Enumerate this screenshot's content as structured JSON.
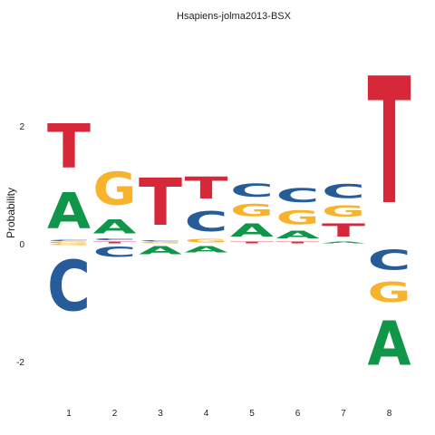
{
  "chart_data": {
    "type": "sequence-logo",
    "title": "Hsapiens-jolma2013-BSX",
    "ylabel": "Probability",
    "xlabel": "",
    "ylim": [
      -2.3,
      3.45
    ],
    "yticks": [
      -2,
      0,
      2
    ],
    "positions": [
      "1",
      "2",
      "3",
      "4",
      "5",
      "6",
      "7",
      "8"
    ],
    "colors": {
      "A": "#109648",
      "C": "#255C99",
      "G": "#F7B32B",
      "T": "#D62839"
    },
    "columns": [
      {
        "position": "1",
        "above": [
          {
            "letter": "G",
            "height": 0.04
          },
          {
            "letter": "C",
            "height": 0.03
          },
          {
            "letter": "A",
            "height": 0.98
          },
          {
            "letter": "T",
            "height": 1.2
          }
        ],
        "below": [
          {
            "letter": "G",
            "height": 0.03
          },
          {
            "letter": "C",
            "height": 1.38
          }
        ]
      },
      {
        "position": "2",
        "above": [
          {
            "letter": "T",
            "height": 0.05
          },
          {
            "letter": "C",
            "height": 0.05
          },
          {
            "letter": "A",
            "height": 0.38
          },
          {
            "letter": "G",
            "height": 0.9
          }
        ],
        "below": [
          {
            "letter": "C",
            "height": 0.28
          }
        ]
      },
      {
        "position": "3",
        "above": [
          {
            "letter": "G",
            "height": 0.03
          },
          {
            "letter": "C",
            "height": 0.03
          },
          {
            "letter": "T",
            "height": 1.28
          }
        ],
        "below": [
          {
            "letter": "A",
            "height": 0.22
          }
        ]
      },
      {
        "position": "4",
        "above": [
          {
            "letter": "G",
            "height": 0.1
          },
          {
            "letter": "C",
            "height": 0.55
          },
          {
            "letter": "T",
            "height": 0.6
          }
        ],
        "below": [
          {
            "letter": "A",
            "height": 0.18
          }
        ]
      },
      {
        "position": "5",
        "above": [
          {
            "letter": "T",
            "height": 0.05
          },
          {
            "letter": "A",
            "height": 0.35
          },
          {
            "letter": "G",
            "height": 0.33
          },
          {
            "letter": "C",
            "height": 0.35
          }
        ],
        "below": []
      },
      {
        "position": "6",
        "above": [
          {
            "letter": "T",
            "height": 0.05
          },
          {
            "letter": "A",
            "height": 0.2
          },
          {
            "letter": "G",
            "height": 0.38
          },
          {
            "letter": "C",
            "height": 0.38
          }
        ],
        "below": []
      },
      {
        "position": "7",
        "above": [
          {
            "letter": "A",
            "height": 0.05
          },
          {
            "letter": "T",
            "height": 0.35
          },
          {
            "letter": "G",
            "height": 0.3
          },
          {
            "letter": "C",
            "height": 0.38
          }
        ],
        "below": []
      },
      {
        "position": "8",
        "above": [
          {
            "letter": "T",
            "height": 3.45
          }
        ],
        "below": [
          {
            "letter": "C",
            "height": 0.55
          },
          {
            "letter": "G",
            "height": 0.55
          },
          {
            "letter": "A",
            "height": 1.2
          }
        ]
      }
    ]
  }
}
